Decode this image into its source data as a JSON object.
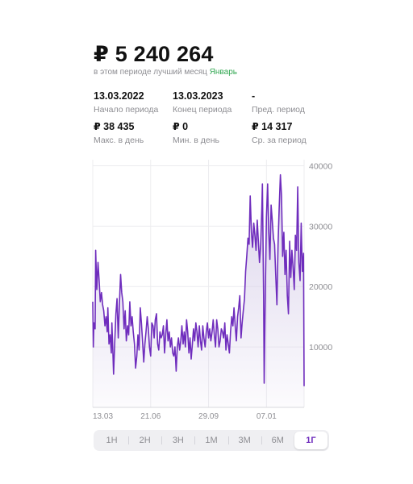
{
  "summary": {
    "total": "₽ 5 240 264",
    "subtitle_prefix": "в этом периоде лучший месяц",
    "best_month": "Январь"
  },
  "stats": [
    {
      "value": "13.03.2022",
      "label": "Начало периода"
    },
    {
      "value": "13.03.2023",
      "label": "Конец периода"
    },
    {
      "value": "-",
      "label": "Пред. период"
    },
    {
      "value": "₽ 38 435",
      "label": "Макс. в день"
    },
    {
      "value": "₽ 0",
      "label": "Мин. в день"
    },
    {
      "value": "₽ 14 317",
      "label": "Ср. за период"
    }
  ],
  "periods": {
    "options": [
      "1Н",
      "2Н",
      "3Н",
      "1М",
      "3М",
      "6М",
      "1Г"
    ],
    "selected": "1Г"
  },
  "colors": {
    "accent": "#6f2dbd",
    "positive": "#34a853",
    "fill_top": "#d9d1ea",
    "grid": "#ececef"
  },
  "chart_data": {
    "type": "area",
    "x_tick_labels": [
      "13.03",
      "21.06",
      "29.09",
      "07.01"
    ],
    "x_tick_days": [
      0,
      100,
      200,
      300
    ],
    "y_ticks": [
      10000,
      20000,
      30000,
      40000
    ],
    "y_tick_labels": [
      "10000",
      "20000",
      "30000",
      "40000"
    ],
    "ylim": [
      0,
      41000
    ],
    "x_days_total": 365,
    "grid": true,
    "series": [
      {
        "points": [
          [
            0,
            17500
          ],
          [
            1,
            10000
          ],
          [
            2,
            14000
          ],
          [
            4,
            13000
          ],
          [
            5,
            26000
          ],
          [
            7,
            19500
          ],
          [
            9,
            24000
          ],
          [
            11,
            21000
          ],
          [
            13,
            17500
          ],
          [
            15,
            19000
          ],
          [
            17,
            17000
          ],
          [
            19,
            16000
          ],
          [
            21,
            13500
          ],
          [
            23,
            15000
          ],
          [
            25,
            12500
          ],
          [
            26,
            16500
          ],
          [
            28,
            10500
          ],
          [
            30,
            12000
          ],
          [
            32,
            9000
          ],
          [
            33,
            14000
          ],
          [
            35,
            8500
          ],
          [
            36,
            5500
          ],
          [
            38,
            11000
          ],
          [
            40,
            15500
          ],
          [
            42,
            18000
          ],
          [
            44,
            11500
          ],
          [
            46,
            17000
          ],
          [
            48,
            22000
          ],
          [
            50,
            19000
          ],
          [
            52,
            17500
          ],
          [
            54,
            13000
          ],
          [
            56,
            16000
          ],
          [
            58,
            11000
          ],
          [
            60,
            13500
          ],
          [
            62,
            12000
          ],
          [
            64,
            17500
          ],
          [
            66,
            13500
          ],
          [
            68,
            15000
          ],
          [
            70,
            12500
          ],
          [
            72,
            10500
          ],
          [
            74,
            6500
          ],
          [
            76,
            8500
          ],
          [
            78,
            12000
          ],
          [
            80,
            9500
          ],
          [
            82,
            16500
          ],
          [
            84,
            14000
          ],
          [
            86,
            11000
          ],
          [
            88,
            7500
          ],
          [
            90,
            10500
          ],
          [
            92,
            12500
          ],
          [
            94,
            15000
          ],
          [
            96,
            13000
          ],
          [
            98,
            10000
          ],
          [
            100,
            8500
          ],
          [
            102,
            14000
          ],
          [
            104,
            13500
          ],
          [
            106,
            11500
          ],
          [
            108,
            14500
          ],
          [
            110,
            15500
          ],
          [
            112,
            10500
          ],
          [
            114,
            9500
          ],
          [
            116,
            12500
          ],
          [
            118,
            11500
          ],
          [
            120,
            12000
          ],
          [
            122,
            13500
          ],
          [
            124,
            9000
          ],
          [
            126,
            12000
          ],
          [
            128,
            14500
          ],
          [
            130,
            11000
          ],
          [
            132,
            12500
          ],
          [
            134,
            10000
          ],
          [
            136,
            11500
          ],
          [
            138,
            9000
          ],
          [
            140,
            8500
          ],
          [
            142,
            10000
          ],
          [
            144,
            6000
          ],
          [
            146,
            10000
          ],
          [
            148,
            11500
          ],
          [
            150,
            9500
          ],
          [
            152,
            11000
          ],
          [
            154,
            13500
          ],
          [
            156,
            10500
          ],
          [
            158,
            12500
          ],
          [
            160,
            10000
          ],
          [
            162,
            14500
          ],
          [
            164,
            12500
          ],
          [
            166,
            9000
          ],
          [
            168,
            11500
          ],
          [
            170,
            8000
          ],
          [
            172,
            10500
          ],
          [
            174,
            13000
          ],
          [
            176,
            11000
          ],
          [
            178,
            14000
          ],
          [
            180,
            12500
          ],
          [
            182,
            10000
          ],
          [
            184,
            13500
          ],
          [
            186,
            11000
          ],
          [
            188,
            9500
          ],
          [
            190,
            13500
          ],
          [
            192,
            11500
          ],
          [
            194,
            10000
          ],
          [
            196,
            12500
          ],
          [
            198,
            14000
          ],
          [
            200,
            11500
          ],
          [
            202,
            13000
          ],
          [
            204,
            11000
          ],
          [
            206,
            12500
          ],
          [
            208,
            14500
          ],
          [
            210,
            12000
          ],
          [
            212,
            10000
          ],
          [
            214,
            14500
          ],
          [
            216,
            13000
          ],
          [
            218,
            10000
          ],
          [
            220,
            11000
          ],
          [
            222,
            13000
          ],
          [
            224,
            12500
          ],
          [
            226,
            11500
          ],
          [
            228,
            14000
          ],
          [
            230,
            9500
          ],
          [
            232,
            12000
          ],
          [
            234,
            10500
          ],
          [
            236,
            9000
          ],
          [
            238,
            12500
          ],
          [
            240,
            15000
          ],
          [
            242,
            13500
          ],
          [
            244,
            16500
          ],
          [
            246,
            13500
          ],
          [
            248,
            11000
          ],
          [
            250,
            15000
          ],
          [
            252,
            16500
          ],
          [
            254,
            18500
          ],
          [
            256,
            11500
          ],
          [
            258,
            14000
          ],
          [
            260,
            16000
          ],
          [
            262,
            18000
          ],
          [
            264,
            22500
          ],
          [
            266,
            25000
          ],
          [
            268,
            28000
          ],
          [
            270,
            27000
          ],
          [
            272,
            35000
          ],
          [
            274,
            29000
          ],
          [
            276,
            26500
          ],
          [
            278,
            30500
          ],
          [
            280,
            28500
          ],
          [
            282,
            26000
          ],
          [
            284,
            31000
          ],
          [
            286,
            27500
          ],
          [
            288,
            24000
          ],
          [
            290,
            27000
          ],
          [
            292,
            33000
          ],
          [
            293,
            37000
          ],
          [
            295,
            18500
          ],
          [
            296,
            4000
          ],
          [
            298,
            19000
          ],
          [
            300,
            31500
          ],
          [
            302,
            37000
          ],
          [
            304,
            29000
          ],
          [
            306,
            24500
          ],
          [
            308,
            33500
          ],
          [
            310,
            31000
          ],
          [
            312,
            28000
          ],
          [
            314,
            27000
          ],
          [
            316,
            22000
          ],
          [
            318,
            17000
          ],
          [
            320,
            27000
          ],
          [
            322,
            33000
          ],
          [
            324,
            38500
          ],
          [
            326,
            35000
          ],
          [
            328,
            25000
          ],
          [
            330,
            29000
          ],
          [
            332,
            22000
          ],
          [
            334,
            26000
          ],
          [
            336,
            18500
          ],
          [
            338,
            15500
          ],
          [
            340,
            27500
          ],
          [
            342,
            21500
          ],
          [
            344,
            26000
          ],
          [
            346,
            23000
          ],
          [
            348,
            19500
          ],
          [
            350,
            28500
          ],
          [
            352,
            26000
          ],
          [
            354,
            36500
          ],
          [
            356,
            24000
          ],
          [
            358,
            21000
          ],
          [
            360,
            30500
          ],
          [
            362,
            22500
          ],
          [
            364,
            25500
          ],
          [
            365,
            3500
          ]
        ]
      }
    ]
  }
}
